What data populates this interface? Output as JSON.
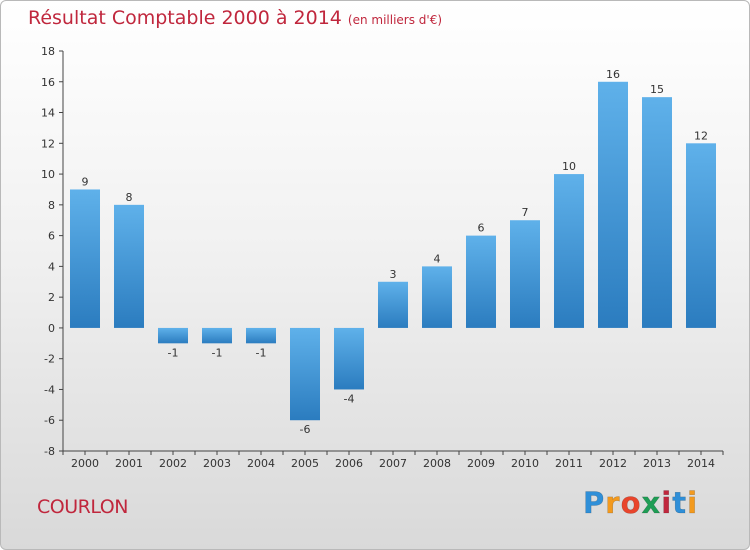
{
  "header": {
    "title": "Résultat Comptable 2000 à 2014",
    "unit": "(en milliers d'€)"
  },
  "footer": {
    "commune": "COURLON",
    "logo_text": "Proxiti",
    "logo_letters": [
      "P",
      "r",
      "o",
      "x",
      "i",
      "t",
      "i"
    ],
    "logo_colors": [
      "#2f8fd8",
      "#f39a1e",
      "#e8452c",
      "#1f9d55",
      "#c0273d",
      "#2f8fd8",
      "#f39a1e"
    ]
  },
  "colors": {
    "title": "#c0273d",
    "bar_light": "#5fb1ea",
    "bar_dark": "#2b7cbf",
    "axis": "#444444",
    "grid_tick": "#444444"
  },
  "chart_data": {
    "type": "bar",
    "categories": [
      "2000",
      "2001",
      "2002",
      "2003",
      "2004",
      "2005",
      "2006",
      "2007",
      "2008",
      "2009",
      "2010",
      "2011",
      "2012",
      "2013",
      "2014"
    ],
    "values": [
      9,
      8,
      -1,
      -1,
      -1,
      -6,
      -4,
      3,
      4,
      6,
      7,
      10,
      16,
      15,
      12
    ],
    "value_labels": [
      "9",
      "8",
      "-1",
      "-1",
      "-1",
      "-6",
      "-4",
      "3",
      "4",
      "6",
      "7",
      "10",
      "16",
      "15",
      "12"
    ],
    "title": "Résultat Comptable 2000 à 2014",
    "xlabel": "",
    "ylabel": "",
    "ylim": [
      -8,
      18
    ],
    "yticks": [
      -8,
      -6,
      -4,
      -2,
      0,
      2,
      4,
      6,
      8,
      10,
      12,
      14,
      16,
      18
    ],
    "grid": false,
    "legend": "none"
  }
}
